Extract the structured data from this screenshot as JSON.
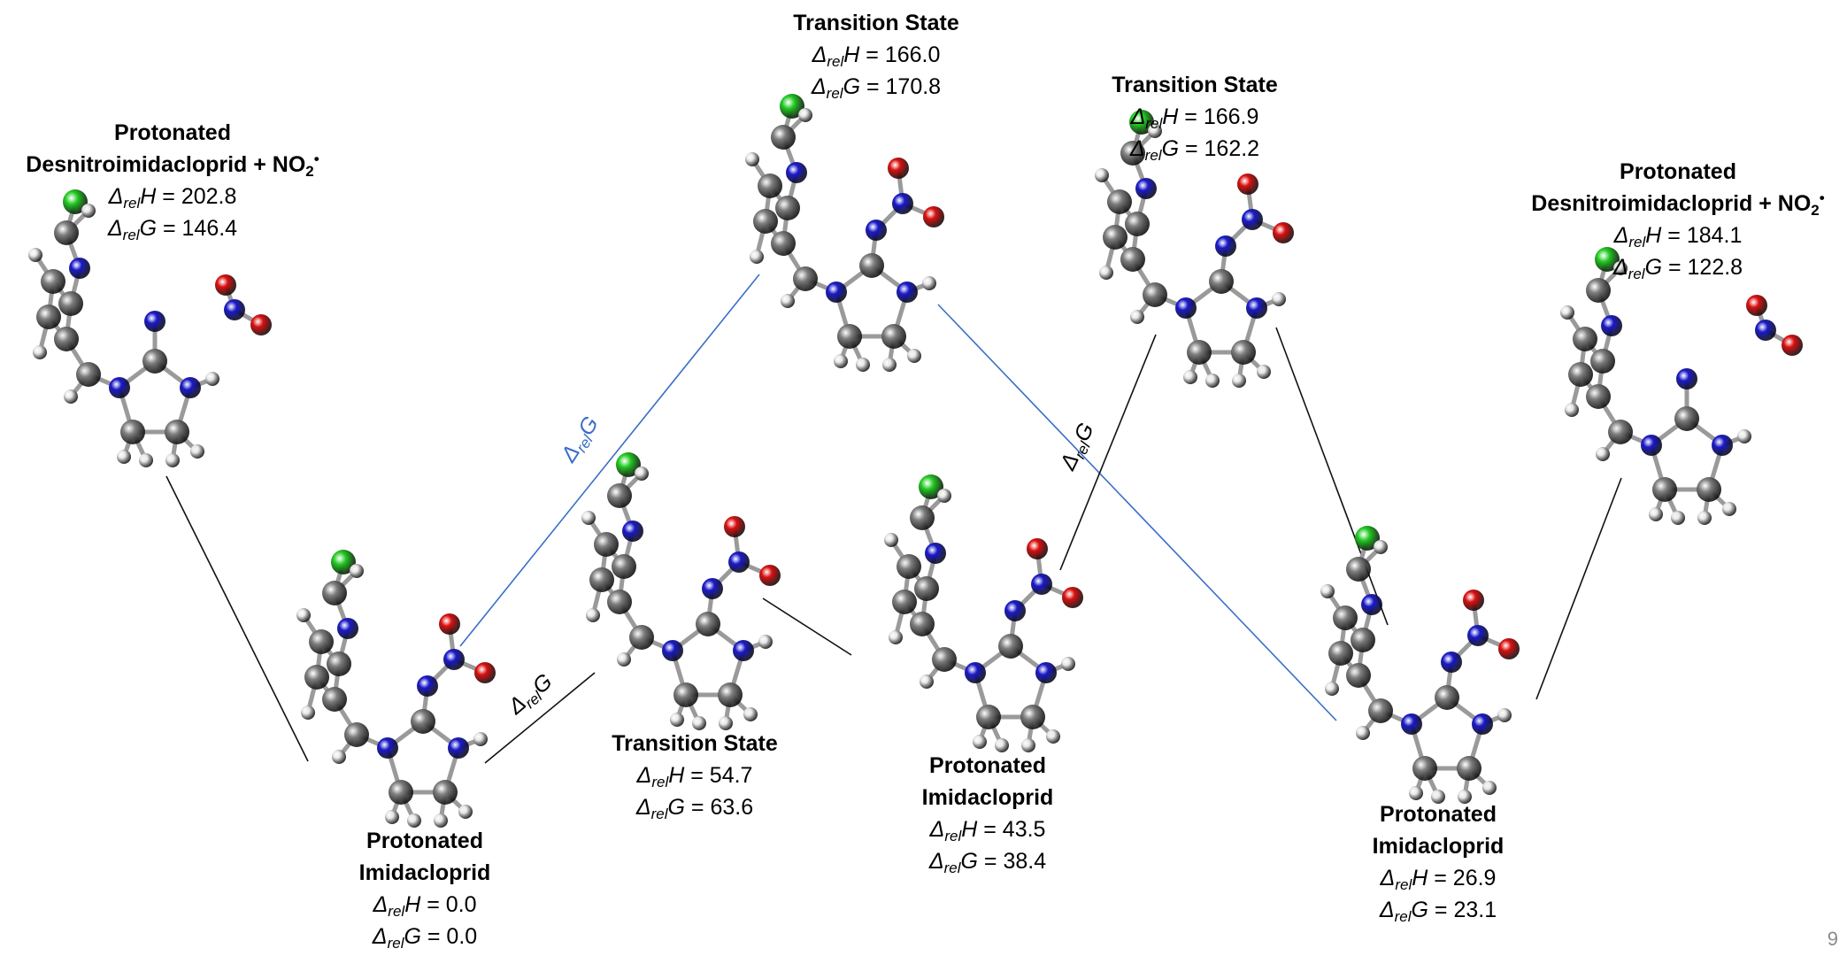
{
  "colors": {
    "carbon": "#808080",
    "nitrogen": "#1a1acc",
    "oxygen": "#dd1010",
    "chlorine": "#22cc22",
    "hydrogen": "#e8e8e8",
    "black_path": "#111111",
    "blue_path": "#3a6ec8"
  },
  "delta_symbol": "Δ",
  "rel_sub": "rel",
  "species": [
    {
      "title_lines": [
        "Protonated",
        "Desnitroimidacloprid + NO"
      ],
      "title_suffix": "2",
      "radical": "•",
      "H": "H = 202.8",
      "G": "G = 146.4"
    },
    {
      "title_lines": [
        "Protonated",
        "Imidacloprid"
      ],
      "H": "H = 0.0",
      "G": "G = 0.0"
    },
    {
      "title_lines": [
        "Transition State"
      ],
      "H": "H = 166.0",
      "G": "G = 170.8"
    },
    {
      "title_lines": [
        "Transition State"
      ],
      "H": "H = 54.7",
      "G": "G = 63.6"
    },
    {
      "title_lines": [
        "Protonated",
        "Imidacloprid"
      ],
      "H": "H = 43.5",
      "G": "G = 38.4"
    },
    {
      "title_lines": [
        "Transition State"
      ],
      "H": "H = 166.9",
      "G": "G = 162.2"
    },
    {
      "title_lines": [
        "Protonated",
        "Imidacloprid"
      ],
      "H": "H = 26.9",
      "G": "G = 23.1"
    },
    {
      "title_lines": [
        "Protonated",
        "Desnitroimidacloprid + NO"
      ],
      "title_suffix": "2",
      "radical": "•",
      "H": "H = 184.1",
      "G": "G = 122.8"
    }
  ],
  "path_labels": [
    "G",
    "G",
    "G"
  ],
  "page_number": "9"
}
